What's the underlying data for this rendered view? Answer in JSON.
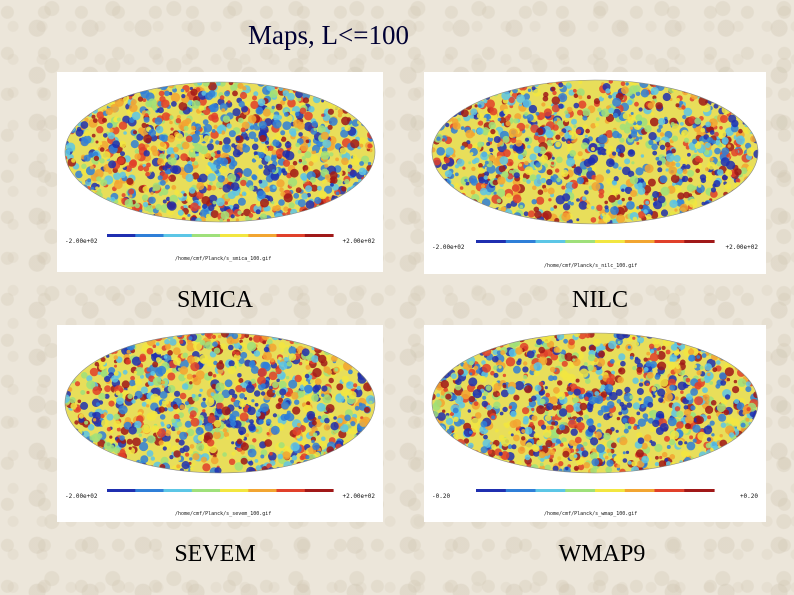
{
  "title": "Maps, L<=100",
  "colorbar": {
    "low_color": "#1a1aa8",
    "high_color": "#b01010"
  },
  "maps": [
    {
      "id": "smica",
      "label": "SMICA",
      "min_label": "-2.00e+02",
      "max_label": "+2.00e+02",
      "filename": "/home/cmf/Planck/s_smica_100.gif"
    },
    {
      "id": "nilc",
      "label": "NILC",
      "min_label": "-2.00e+02",
      "max_label": "+2.00e+02",
      "filename": "/home/cmf/Planck/s_nilc_100.gif"
    },
    {
      "id": "sevem",
      "label": "SEVEM",
      "min_label": "-2.00e+02",
      "max_label": "+2.00e+02",
      "filename": "/home/cmf/Planck/s_sevem_100.gif"
    },
    {
      "id": "wmap9",
      "label": "WMAP9",
      "min_label": "-0.20",
      "max_label": "+0.20",
      "filename": "/home/cmf/Planck/s_wmap_100.gif"
    }
  ]
}
